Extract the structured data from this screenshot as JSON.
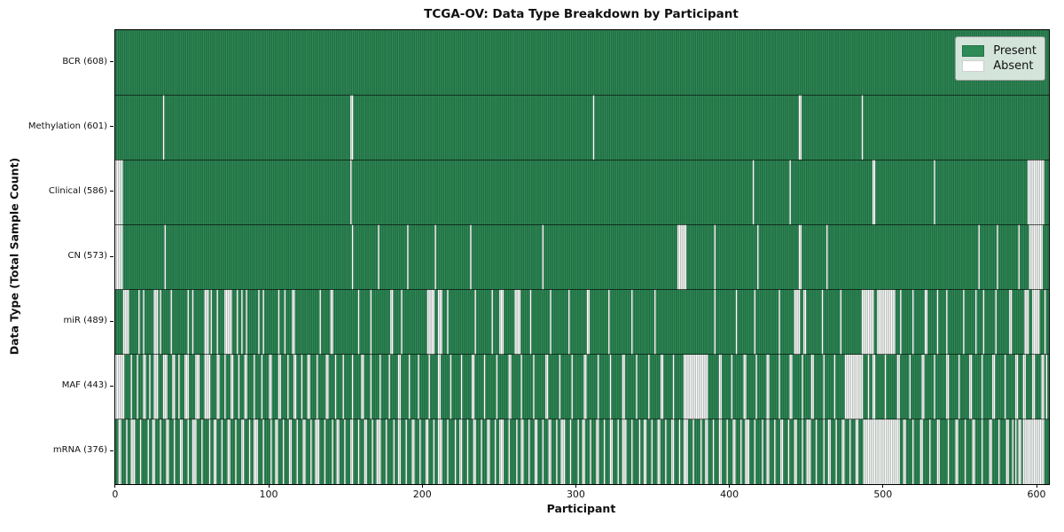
{
  "chart_data": {
    "type": "heatmap",
    "title": "TCGA-OV: Data Type Breakdown by Participant",
    "xlabel": "Participant",
    "ylabel": "Data Type (Total Sample Count)",
    "n_participants": 608,
    "xlim": [
      -0.5,
      607.5
    ],
    "x_ticks": [
      0,
      100,
      200,
      300,
      400,
      500,
      600
    ],
    "grid": false,
    "legend": {
      "position": "upper right",
      "items": [
        {
          "label": "Present",
          "color": "#2e8b57"
        },
        {
          "label": "Absent",
          "color": "#ffffff"
        }
      ]
    },
    "colors": {
      "present": "#2e8b57",
      "absent": "#ffffff",
      "bar_edge": "rgba(12,38,24,0.5)",
      "row_divider": "#000000"
    },
    "rows": [
      {
        "name": "bcr",
        "label": "BCR (608)",
        "present_count": 608,
        "absent_ranges": []
      },
      {
        "name": "methylation",
        "label": "Methylation (601)",
        "present_count": 601,
        "absent_ranges": [
          [
            31,
            31
          ],
          [
            153,
            154
          ],
          [
            311,
            311
          ],
          [
            445,
            446
          ],
          [
            486,
            486
          ]
        ]
      },
      {
        "name": "clinical",
        "label": "Clinical (586)",
        "present_count": 586,
        "absent_ranges": [
          [
            0,
            4
          ],
          [
            153,
            153
          ],
          [
            415,
            415
          ],
          [
            439,
            439
          ],
          [
            493,
            494
          ],
          [
            533,
            533
          ],
          [
            594,
            604
          ]
        ]
      },
      {
        "name": "cn",
        "label": "CN (573)",
        "present_count": 573,
        "absent_ranges": [
          [
            0,
            4
          ],
          [
            32,
            32
          ],
          [
            154,
            154
          ],
          [
            171,
            171
          ],
          [
            190,
            190
          ],
          [
            208,
            208
          ],
          [
            231,
            231
          ],
          [
            278,
            278
          ],
          [
            366,
            371
          ],
          [
            390,
            390
          ],
          [
            418,
            418
          ],
          [
            445,
            446
          ],
          [
            463,
            463
          ],
          [
            562,
            562
          ],
          [
            574,
            574
          ],
          [
            588,
            588
          ],
          [
            595,
            603
          ]
        ]
      },
      {
        "name": "mir",
        "label": "miR (489)",
        "present_count": 489,
        "absent_ranges": [
          [
            5,
            8
          ],
          [
            15,
            15
          ],
          [
            18,
            18
          ],
          [
            25,
            27
          ],
          [
            29,
            29
          ],
          [
            36,
            36
          ],
          [
            47,
            47
          ],
          [
            50,
            50
          ],
          [
            58,
            60
          ],
          [
            62,
            62
          ],
          [
            66,
            66
          ],
          [
            71,
            75
          ],
          [
            79,
            79
          ],
          [
            82,
            82
          ],
          [
            85,
            85
          ],
          [
            93,
            93
          ],
          [
            96,
            96
          ],
          [
            106,
            106
          ],
          [
            110,
            110
          ],
          [
            115,
            116
          ],
          [
            133,
            133
          ],
          [
            140,
            141
          ],
          [
            158,
            158
          ],
          [
            166,
            166
          ],
          [
            179,
            180
          ],
          [
            186,
            186
          ],
          [
            203,
            207
          ],
          [
            210,
            212
          ],
          [
            216,
            216
          ],
          [
            234,
            234
          ],
          [
            245,
            245
          ],
          [
            250,
            252
          ],
          [
            260,
            263
          ],
          [
            270,
            270
          ],
          [
            283,
            283
          ],
          [
            295,
            295
          ],
          [
            307,
            308
          ],
          [
            321,
            321
          ],
          [
            336,
            336
          ],
          [
            351,
            351
          ],
          [
            390,
            390
          ],
          [
            404,
            404
          ],
          [
            416,
            416
          ],
          [
            432,
            432
          ],
          [
            442,
            445
          ],
          [
            448,
            449
          ],
          [
            460,
            460
          ],
          [
            472,
            472
          ],
          [
            486,
            493
          ],
          [
            496,
            507
          ],
          [
            511,
            511
          ],
          [
            519,
            519
          ],
          [
            527,
            528
          ],
          [
            535,
            535
          ],
          [
            541,
            541
          ],
          [
            552,
            552
          ],
          [
            560,
            560
          ],
          [
            565,
            565
          ],
          [
            573,
            573
          ],
          [
            582,
            583
          ],
          [
            592,
            594
          ],
          [
            597,
            601
          ],
          [
            605,
            605
          ]
        ]
      },
      {
        "name": "maf",
        "label": "MAF (443)",
        "present_count": 443,
        "absent_ranges": [
          [
            0,
            5
          ],
          [
            10,
            10
          ],
          [
            14,
            14
          ],
          [
            18,
            19
          ],
          [
            22,
            22
          ],
          [
            25,
            27
          ],
          [
            31,
            33
          ],
          [
            37,
            38
          ],
          [
            41,
            41
          ],
          [
            45,
            47
          ],
          [
            52,
            54
          ],
          [
            58,
            61
          ],
          [
            66,
            67
          ],
          [
            71,
            71
          ],
          [
            75,
            76
          ],
          [
            80,
            80
          ],
          [
            84,
            85
          ],
          [
            90,
            90
          ],
          [
            95,
            95
          ],
          [
            100,
            101
          ],
          [
            106,
            107
          ],
          [
            112,
            112
          ],
          [
            116,
            117
          ],
          [
            121,
            121
          ],
          [
            125,
            126
          ],
          [
            131,
            131
          ],
          [
            137,
            138
          ],
          [
            143,
            143
          ],
          [
            148,
            148
          ],
          [
            154,
            154
          ],
          [
            160,
            161
          ],
          [
            166,
            166
          ],
          [
            172,
            172
          ],
          [
            178,
            178
          ],
          [
            184,
            185
          ],
          [
            191,
            191
          ],
          [
            197,
            197
          ],
          [
            204,
            204
          ],
          [
            210,
            211
          ],
          [
            218,
            218
          ],
          [
            225,
            225
          ],
          [
            232,
            233
          ],
          [
            240,
            240
          ],
          [
            248,
            248
          ],
          [
            256,
            257
          ],
          [
            264,
            264
          ],
          [
            272,
            272
          ],
          [
            280,
            281
          ],
          [
            289,
            289
          ],
          [
            297,
            297
          ],
          [
            305,
            306
          ],
          [
            314,
            314
          ],
          [
            322,
            322
          ],
          [
            330,
            331
          ],
          [
            339,
            339
          ],
          [
            347,
            347
          ],
          [
            355,
            356
          ],
          [
            363,
            363
          ],
          [
            370,
            385
          ],
          [
            393,
            394
          ],
          [
            401,
            401
          ],
          [
            409,
            410
          ],
          [
            417,
            417
          ],
          [
            424,
            425
          ],
          [
            432,
            432
          ],
          [
            439,
            440
          ],
          [
            447,
            447
          ],
          [
            453,
            454
          ],
          [
            461,
            461
          ],
          [
            468,
            468
          ],
          [
            475,
            486
          ],
          [
            490,
            490
          ],
          [
            493,
            494
          ],
          [
            501,
            501
          ],
          [
            509,
            510
          ],
          [
            517,
            517
          ],
          [
            525,
            526
          ],
          [
            533,
            533
          ],
          [
            541,
            542
          ],
          [
            549,
            549
          ],
          [
            556,
            557
          ],
          [
            564,
            564
          ],
          [
            571,
            572
          ],
          [
            579,
            579
          ],
          [
            586,
            587
          ],
          [
            591,
            592
          ],
          [
            597,
            598
          ],
          [
            603,
            604
          ],
          [
            606,
            606
          ]
        ]
      },
      {
        "name": "mrna",
        "label": "mRNA (376)",
        "present_count": 376,
        "absent_ranges": [
          [
            2,
            3
          ],
          [
            7,
            7
          ],
          [
            10,
            12
          ],
          [
            16,
            16
          ],
          [
            21,
            21
          ],
          [
            24,
            25
          ],
          [
            29,
            29
          ],
          [
            33,
            34
          ],
          [
            38,
            38
          ],
          [
            42,
            43
          ],
          [
            47,
            47
          ],
          [
            50,
            52
          ],
          [
            56,
            56
          ],
          [
            61,
            61
          ],
          [
            64,
            65
          ],
          [
            69,
            69
          ],
          [
            73,
            74
          ],
          [
            78,
            78
          ],
          [
            82,
            83
          ],
          [
            87,
            87
          ],
          [
            90,
            92
          ],
          [
            96,
            96
          ],
          [
            101,
            101
          ],
          [
            104,
            105
          ],
          [
            109,
            109
          ],
          [
            113,
            114
          ],
          [
            118,
            118
          ],
          [
            122,
            123
          ],
          [
            127,
            127
          ],
          [
            130,
            132
          ],
          [
            136,
            136
          ],
          [
            141,
            141
          ],
          [
            144,
            145
          ],
          [
            149,
            149
          ],
          [
            153,
            154
          ],
          [
            158,
            158
          ],
          [
            162,
            163
          ],
          [
            167,
            167
          ],
          [
            170,
            172
          ],
          [
            176,
            176
          ],
          [
            181,
            181
          ],
          [
            184,
            185
          ],
          [
            189,
            189
          ],
          [
            193,
            194
          ],
          [
            198,
            198
          ],
          [
            202,
            203
          ],
          [
            207,
            207
          ],
          [
            210,
            212
          ],
          [
            216,
            216
          ],
          [
            221,
            221
          ],
          [
            224,
            225
          ],
          [
            229,
            229
          ],
          [
            233,
            234
          ],
          [
            238,
            238
          ],
          [
            242,
            243
          ],
          [
            247,
            247
          ],
          [
            250,
            252
          ],
          [
            256,
            256
          ],
          [
            261,
            261
          ],
          [
            264,
            265
          ],
          [
            269,
            269
          ],
          [
            273,
            274
          ],
          [
            278,
            278
          ],
          [
            282,
            283
          ],
          [
            287,
            287
          ],
          [
            290,
            292
          ],
          [
            296,
            296
          ],
          [
            301,
            301
          ],
          [
            304,
            305
          ],
          [
            309,
            309
          ],
          [
            313,
            314
          ],
          [
            318,
            318
          ],
          [
            322,
            323
          ],
          [
            327,
            327
          ],
          [
            330,
            332
          ],
          [
            336,
            336
          ],
          [
            341,
            341
          ],
          [
            344,
            345
          ],
          [
            349,
            349
          ],
          [
            353,
            354
          ],
          [
            358,
            358
          ],
          [
            362,
            363
          ],
          [
            367,
            367
          ],
          [
            370,
            372
          ],
          [
            376,
            376
          ],
          [
            381,
            381
          ],
          [
            384,
            385
          ],
          [
            389,
            389
          ],
          [
            393,
            394
          ],
          [
            398,
            398
          ],
          [
            402,
            403
          ],
          [
            407,
            407
          ],
          [
            410,
            412
          ],
          [
            416,
            416
          ],
          [
            421,
            421
          ],
          [
            424,
            425
          ],
          [
            429,
            429
          ],
          [
            433,
            434
          ],
          [
            438,
            438
          ],
          [
            442,
            443
          ],
          [
            447,
            447
          ],
          [
            450,
            452
          ],
          [
            456,
            456
          ],
          [
            461,
            461
          ],
          [
            464,
            465
          ],
          [
            469,
            469
          ],
          [
            473,
            474
          ],
          [
            478,
            478
          ],
          [
            482,
            483
          ],
          [
            487,
            510
          ],
          [
            513,
            514
          ],
          [
            519,
            519
          ],
          [
            524,
            525
          ],
          [
            530,
            530
          ],
          [
            535,
            536
          ],
          [
            542,
            542
          ],
          [
            547,
            548
          ],
          [
            553,
            553
          ],
          [
            558,
            559
          ],
          [
            564,
            564
          ],
          [
            569,
            570
          ],
          [
            575,
            575
          ],
          [
            580,
            581
          ],
          [
            584,
            584
          ],
          [
            586,
            586
          ],
          [
            588,
            589
          ],
          [
            591,
            604
          ]
        ]
      }
    ]
  }
}
